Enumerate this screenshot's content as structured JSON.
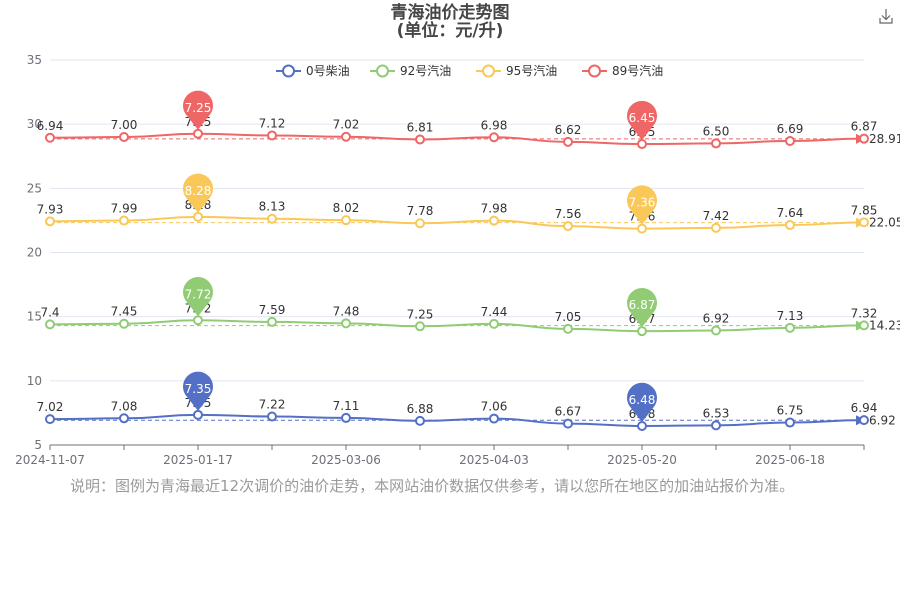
{
  "header": {
    "title": "青海油价走势图",
    "subtitle": "(单位：元/升)"
  },
  "toolbar": {
    "download_icon": "download-icon"
  },
  "note": "说明：图例为青海最近12次调价的油价走势，本网站油价数据仅供参考，请以您所在地区的加油站报价为准。",
  "chart_data": {
    "type": "line",
    "title": "青海油价走势图",
    "subtitle": "(单位：元/升)",
    "ylim": [
      5,
      35
    ],
    "yticks": [
      "5",
      "10",
      "15",
      "20",
      "25",
      "30",
      "35"
    ],
    "x_tick_labels": [
      "2024-11-07",
      "2025-01-17",
      "2025-03-06",
      "2025-04-03",
      "2025-05-20",
      "2025-06-18"
    ],
    "grid": true,
    "legend_position": "top-center",
    "series": [
      {
        "name": "0号柴油",
        "color": "#5470c6",
        "values": [
          "7.02",
          "7.08",
          "7.35",
          "7.22",
          "7.11",
          "6.88",
          "7.06",
          "6.67",
          "6.48",
          "6.53",
          "6.75",
          "6.94"
        ],
        "max_label": "7.35",
        "min_label": "6.48",
        "avg_label": "6.92"
      },
      {
        "name": "92号汽油",
        "color": "#91cc75",
        "values": [
          "7.4",
          "7.45",
          "7.72",
          "7.59",
          "7.48",
          "7.25",
          "7.44",
          "7.05",
          "6.87",
          "6.92",
          "7.13",
          "7.32"
        ],
        "max_label": "7.72",
        "min_label": "6.87",
        "avg_label": "14.23"
      },
      {
        "name": "95号汽油",
        "color": "#fac858",
        "values": [
          "7.93",
          "7.99",
          "8.28",
          "8.13",
          "8.02",
          "7.78",
          "7.98",
          "7.56",
          "7.36",
          "7.42",
          "7.64",
          "7.85"
        ],
        "max_label": "8.28",
        "min_label": "7.36",
        "avg_label": "22.05"
      },
      {
        "name": "89号汽油",
        "color": "#ee6666",
        "values": [
          "6.94",
          "7.00",
          "7.25",
          "7.12",
          "7.02",
          "6.81",
          "6.98",
          "6.62",
          "6.45",
          "6.50",
          "6.69",
          "6.87"
        ],
        "max_label": "7.25",
        "min_label": "6.45",
        "avg_label": "28.91"
      }
    ]
  }
}
